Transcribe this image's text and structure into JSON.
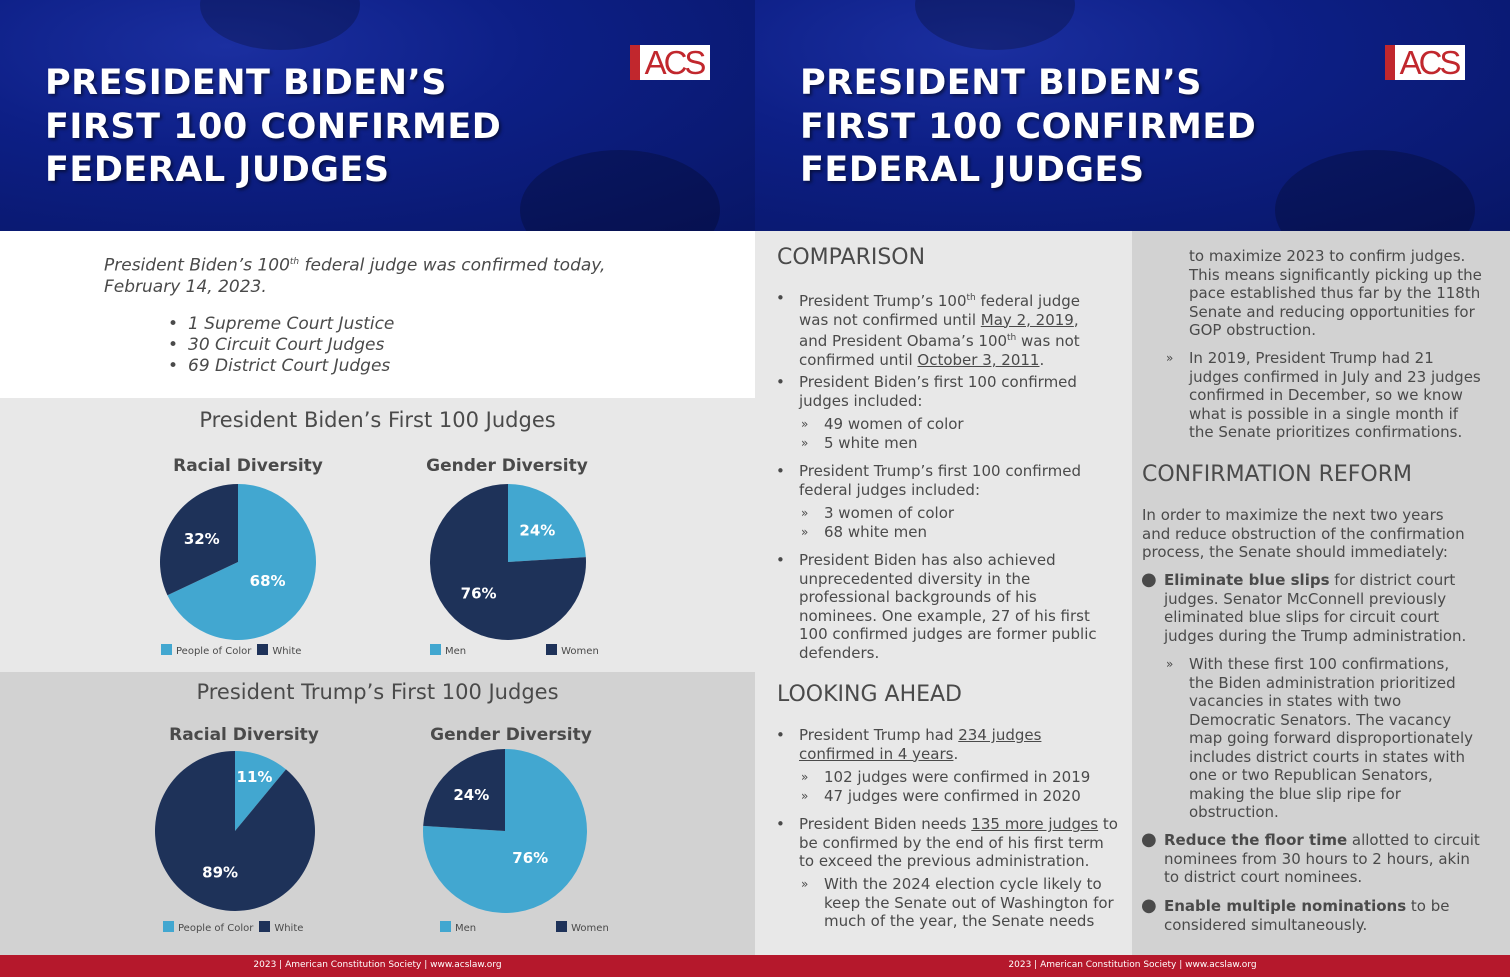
{
  "header": {
    "title_lines": [
      "PRESIDENT BIDEN’S",
      "FIRST 100 CONFIRMED",
      "FEDERAL JUDGES"
    ],
    "logo_text": "ACS"
  },
  "intro": {
    "text_a": "President Biden’s 100",
    "text_sup": "th",
    "text_b": " federal judge was confirmed today,",
    "text_c": "February 14, 2023.",
    "items": [
      "1 Supreme Court Justice",
      "30 Circuit Court Judges",
      "69 District Court Judges"
    ]
  },
  "colors": {
    "light_blue": "#42a7d0",
    "dark_navy": "#1e3259",
    "footer_red": "#b5182c"
  },
  "charts": {
    "biden_title": "President Biden’s First 100 Judges",
    "trump_title": "President Trump’s First 100 Judges",
    "racial_head": "Racial Diversity",
    "gender_head": "Gender Diversity",
    "legend_poc": "People of Color",
    "legend_white": "White",
    "legend_men": "Men",
    "legend_women": "Women"
  },
  "chart_data": [
    {
      "type": "pie",
      "title": "Racial Diversity",
      "group": "President Biden’s First 100 Judges",
      "labels": [
        "People of Color",
        "White"
      ],
      "values": [
        68,
        32
      ],
      "display": [
        "68%",
        "32%"
      ]
    },
    {
      "type": "pie",
      "title": "Gender Diversity",
      "group": "President Biden’s First 100 Judges",
      "labels": [
        "Men",
        "Women"
      ],
      "values": [
        24,
        76
      ],
      "display": [
        "24%",
        "76%"
      ]
    },
    {
      "type": "pie",
      "title": "Racial Diversity",
      "group": "President Trump’s First 100 Judges",
      "labels": [
        "People of Color",
        "White"
      ],
      "values": [
        11,
        89
      ],
      "display": [
        "11%",
        "89%"
      ]
    },
    {
      "type": "pie",
      "title": "Gender Diversity",
      "group": "President Trump’s First 100 Judges",
      "labels": [
        "Men",
        "Women"
      ],
      "values": [
        76,
        24
      ],
      "display": [
        "76%",
        "24%"
      ]
    }
  ],
  "comparison": {
    "heading": "COMPARISON",
    "b1": {
      "a": "President Trump’s 100",
      "sup": "th",
      "b": " federal judge",
      "c": "was not confirmed until ",
      "link1": "May 2, 2019",
      "d": ",",
      "e": "and President Obama’s 100",
      "sup2": "th",
      "f": " was not",
      "g": "confirmed until ",
      "link2": "October 3, 2011",
      "h": "."
    },
    "b2": [
      "President Biden’s first 100 confirmed",
      "judges included:"
    ],
    "b2_subs": [
      "49 women of color",
      "5 white men"
    ],
    "b3": [
      "President Trump’s first 100 confirmed",
      "federal judges included:"
    ],
    "b3_subs": [
      "3 women of color",
      "68 white men"
    ],
    "b4": [
      "President Biden has also achieved",
      "unprecedented diversity in the",
      "professional backgrounds of his",
      "nominees. One example, 27 of his first",
      "100 confirmed judges are former public",
      "defenders."
    ]
  },
  "looking_ahead": {
    "heading": "LOOKING AHEAD",
    "b1_a": "President Trump had ",
    "b1_link_1": "234 judges ",
    "b1_link_2": "confirmed in 4 years",
    "b1_b": ".",
    "b1_subs": [
      "102 judges were confirmed in 2019",
      "47 judges were confirmed in 2020"
    ],
    "b2_a": "President Biden needs ",
    "b2_link": "135 more judges",
    "b2_b": " to",
    "b2_lines": [
      "be confirmed by the end of his first term",
      "to exceed the previous administration."
    ],
    "b2_sub": [
      "With the 2024 election cycle likely to",
      "keep the Senate out of Washington for",
      "much of the year, the Senate needs"
    ]
  },
  "col3": {
    "cont": [
      "to maximize 2023 to confirm judges.",
      "This means significantly picking up the",
      "pace established thus far by the 118th",
      "Senate and reducing opportunities for",
      "GOP obstruction."
    ],
    "sub2019": [
      "In 2019, President Trump had 21",
      "judges confirmed in July and 23 judges",
      "confirmed in December, so we know",
      "what is possible in a single month if",
      "the Senate prioritizes confirmations."
    ],
    "reform_heading": "CONFIRMATION REFORM",
    "reform_intro": [
      "In order to maximize the next two years",
      "and reduce obstruction of the confirmation",
      "process, the Senate should immediately:"
    ],
    "r1_bold": "Eliminate blue slips",
    "r1_rest": " for district court",
    "r1_lines": [
      "judges. Senator McConnell previously",
      "eliminated blue slips for circuit court",
      "judges during the Trump administration."
    ],
    "r1_sub": [
      "With these first 100 confirmations,",
      "the Biden administration prioritized",
      "vacancies in states with two",
      "Democratic Senators. The vacancy",
      "map going forward disproportionately",
      "includes district courts in states with",
      "one or two Republican Senators,",
      "making the blue slip ripe for",
      "obstruction."
    ],
    "r2_bold": "Reduce the floor time",
    "r2_rest": " allotted to circuit",
    "r2_lines": [
      "nominees from 30 hours to 2 hours, akin",
      "to district court nominees."
    ],
    "r3_bold": "Enable multiple nominations",
    "r3_rest": " to be",
    "r3_lines": [
      "considered simultaneously."
    ]
  },
  "footer": {
    "text": "2023 | American Constitution Society | www.acslaw.org"
  }
}
